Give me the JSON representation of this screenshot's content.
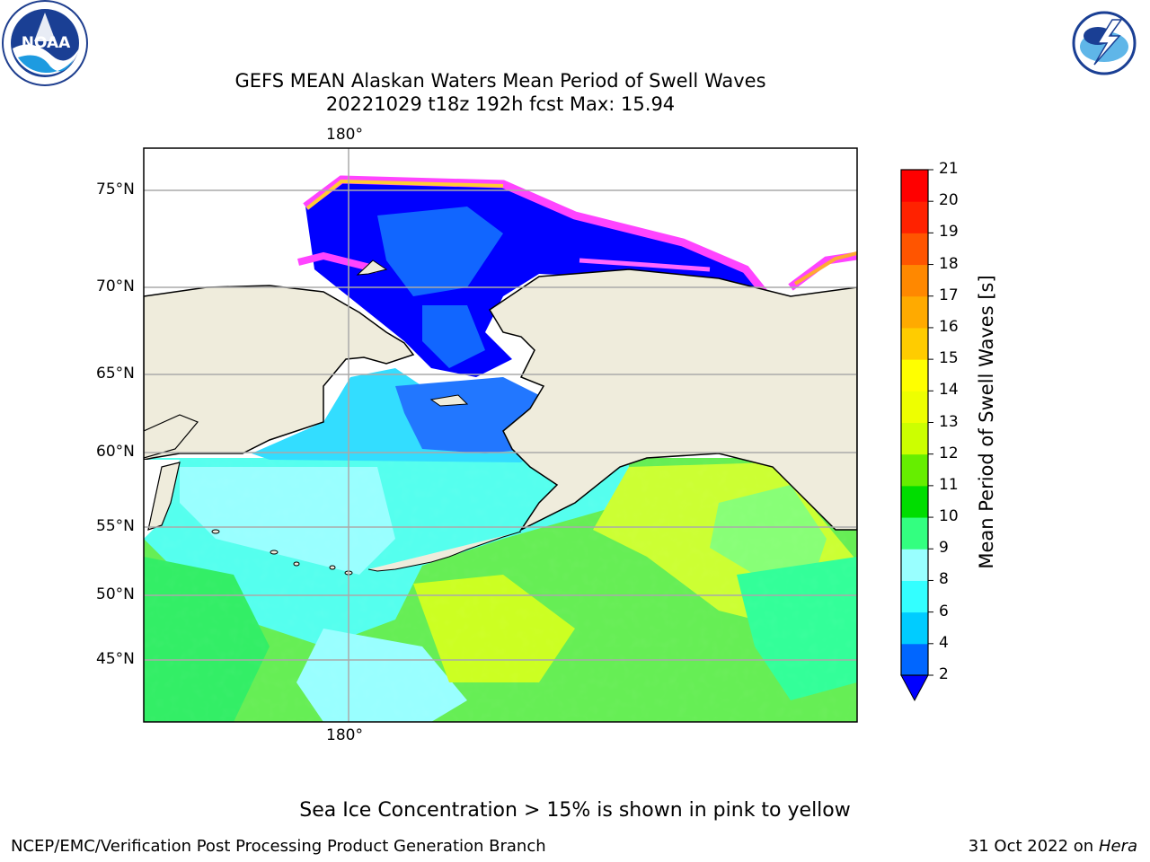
{
  "header": {
    "title_line1": "GEFS MEAN Alaskan Waters Mean Period of Swell Waves",
    "title_line2": "20221029 t18z 192h fcst   Max: 15.94"
  },
  "logos": {
    "left": {
      "name": "NOAA",
      "ring_text": "NATIONAL OCEANIC AND ATMOSPHERIC ADMINISTRATION · U.S. DEPARTMENT OF COMMERCE"
    },
    "right": {
      "name": "NATIONAL WEATHER SERVICE"
    }
  },
  "map": {
    "lon_label": "180°",
    "lat_labels": [
      "75°N",
      "70°N",
      "65°N",
      "60°N",
      "55°N",
      "50°N",
      "45°N"
    ],
    "ice_color": "#ff33ff",
    "land_color": "#efecdc"
  },
  "colorbar": {
    "label": "Mean Period of Swell Waves [s]",
    "ticks": [
      "2",
      "4",
      "6",
      "8",
      "9",
      "10",
      "11",
      "12",
      "13",
      "14",
      "15",
      "16",
      "17",
      "18",
      "19",
      "20",
      "21"
    ],
    "colors": [
      "#0066ff",
      "#00ccff",
      "#33ffff",
      "#99ffff",
      "#33ff80",
      "#00dd00",
      "#66ee00",
      "#ccff00",
      "#eeff00",
      "#ffff00",
      "#ffcc00",
      "#ffaa00",
      "#ff8800",
      "#ff5500",
      "#ff2200",
      "#ff0000"
    ],
    "under_color": "#0000ff"
  },
  "notes": {
    "sea_ice": "Sea Ice Concentration > 15% is shown in pink to yellow"
  },
  "footer": {
    "credit": "NCEP/EMC/Verification Post Processing Product Generation Branch",
    "date": "31 Oct 2022 on",
    "host": "Hera"
  }
}
